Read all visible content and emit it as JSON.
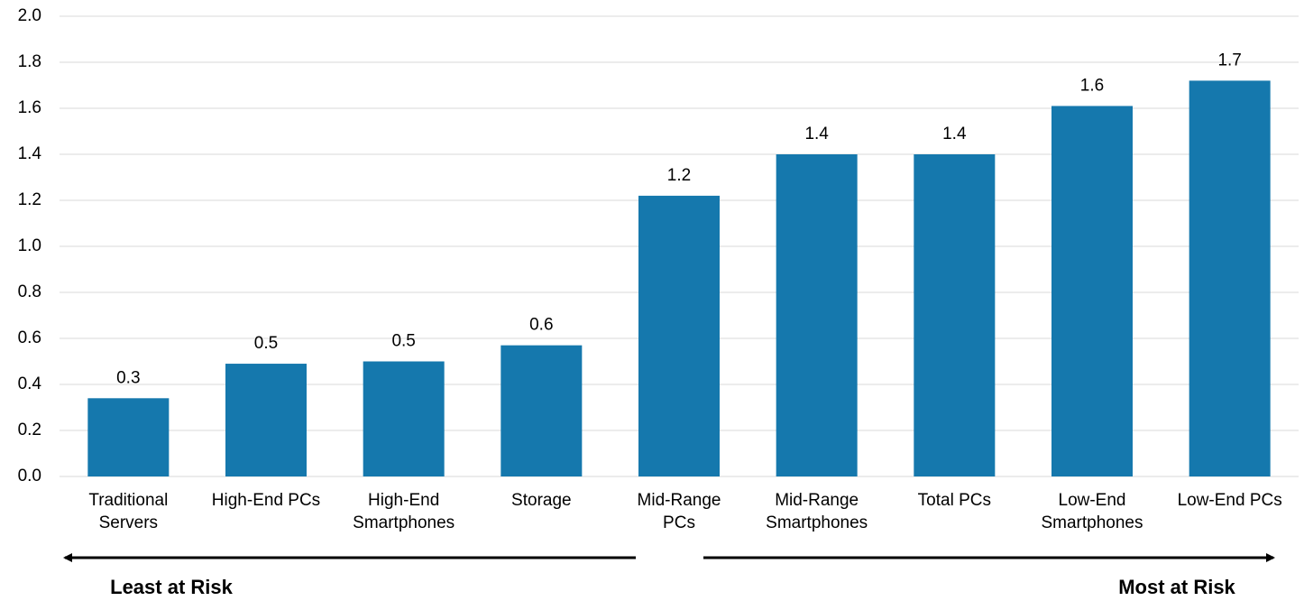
{
  "chart_data": {
    "type": "bar",
    "categories": [
      "Traditional\nServers",
      "High-End PCs",
      "High-End\nSmartphones",
      "Storage",
      "Mid-Range\nPCs",
      "Mid-Range\nSmartphones",
      "Total PCs",
      "Low-End\nSmartphones",
      "Low-End PCs"
    ],
    "values": [
      0.34,
      0.49,
      0.5,
      0.57,
      1.22,
      1.4,
      1.4,
      1.61,
      1.72
    ],
    "value_labels": [
      "0.3",
      "0.5",
      "0.5",
      "0.6",
      "1.2",
      "1.4",
      "1.4",
      "1.6",
      "1.7"
    ],
    "color": "#1578ad",
    "ylim": [
      0,
      2
    ],
    "yticks": [
      {
        "value": 0,
        "label": "0.0"
      },
      0.2,
      0.4,
      0.6,
      0.8,
      {
        "value": 1,
        "label": "1.0"
      },
      1.2,
      1.4,
      1.6,
      1.8,
      {
        "value": 2,
        "label": "2.0"
      }
    ],
    "grid": true,
    "annotations": [
      {
        "text": "Least at Risk",
        "color": "#1fa34a"
      },
      {
        "text": "Most at Risk",
        "color": "#e31e24"
      }
    ]
  }
}
